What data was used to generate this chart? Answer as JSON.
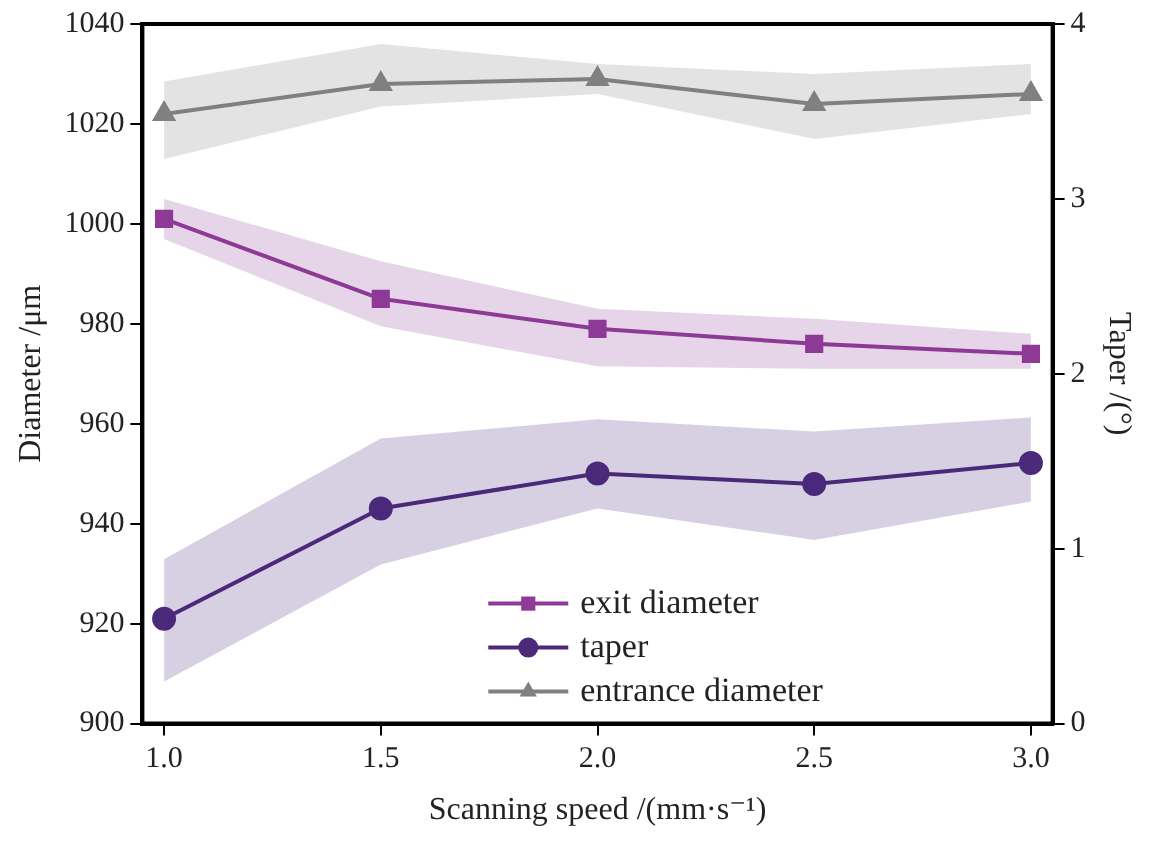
{
  "chart_data": {
    "type": "line",
    "xlabel": "Scanning speed /(mm·s⁻¹)",
    "ylabel": "Diameter /μm",
    "y2label": "Taper /(°)",
    "x": [
      1.0,
      1.5,
      2.0,
      2.5,
      3.0
    ],
    "xlim": [
      0.95,
      3.05
    ],
    "xticks": [
      {
        "value": 1.0,
        "label": "1.0"
      },
      {
        "value": 1.5,
        "label": "1.5"
      },
      {
        "value": 2.0,
        "label": "2.0"
      },
      {
        "value": 2.5,
        "label": "2.5"
      },
      {
        "value": 3.0,
        "label": "3.0"
      }
    ],
    "ylim": [
      900,
      1040
    ],
    "yticks": [
      900,
      920,
      940,
      960,
      980,
      1000,
      1020,
      1040
    ],
    "y2lim": [
      0,
      4
    ],
    "y2ticks": [
      0,
      1,
      2,
      3,
      4
    ],
    "grid": false,
    "legend": "bottom",
    "line_style": "solid",
    "series": [
      {
        "name": "exit diameter",
        "color": "#8e3a96",
        "marker": "square",
        "values": [
          1001,
          985,
          979,
          976,
          974
        ],
        "lower": [
          997,
          979.5,
          971.5,
          971,
          971
        ],
        "upper": [
          1005,
          992.5,
          983,
          981,
          978
        ]
      },
      {
        "name": "taper",
        "color": "#4b2a7a",
        "marker": "circle",
        "axis": "y2",
        "values": [
          0.6,
          1.23,
          1.43,
          1.37,
          1.49
        ],
        "lower": [
          0.24,
          0.91,
          1.23,
          1.05,
          1.27
        ],
        "upper": [
          0.94,
          1.63,
          1.74,
          1.67,
          1.75
        ]
      },
      {
        "name": "entrance diameter",
        "color": "#808080",
        "marker": "triangle",
        "values": [
          1022,
          1028,
          1029,
          1024,
          1026
        ],
        "lower": [
          1013,
          1023.5,
          1026,
          1017,
          1022
        ],
        "upper": [
          1028.5,
          1036,
          1032,
          1030,
          1032
        ]
      }
    ]
  }
}
